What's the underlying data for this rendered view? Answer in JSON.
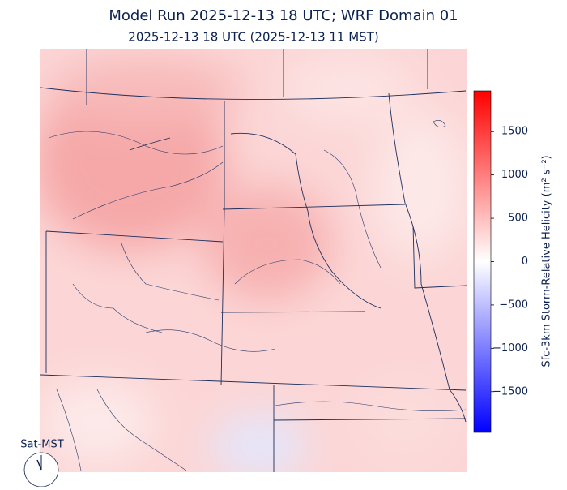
{
  "header": {
    "title": "Model Run 2025-12-13 18 UTC; WRF Domain 01",
    "subtitle": "2025-12-13 18 UTC  (2025-12-13 11 MST)"
  },
  "colorbar": {
    "label": "Sfc-3km Storm-Relative Helicity (m² s⁻²)",
    "lim": [
      -1970,
      1970
    ],
    "ticks": [
      {
        "value": -1500,
        "label": "−1500"
      },
      {
        "value": -1000,
        "label": "−1000"
      },
      {
        "value": -500,
        "label": "−500"
      },
      0,
      500,
      1000,
      1500
    ]
  },
  "clock": {
    "label": "Sat-MST"
  }
}
